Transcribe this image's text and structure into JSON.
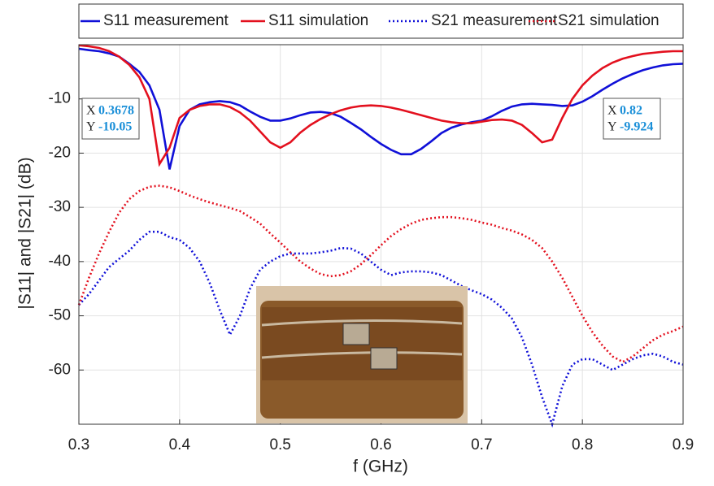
{
  "chart_data": {
    "type": "line",
    "x_label": "f (GHz)",
    "y_label": "|S11| and |S21| (dB)",
    "x": [
      0.3,
      0.31,
      0.32,
      0.33,
      0.34,
      0.35,
      0.36,
      0.37,
      0.38,
      0.39,
      0.4,
      0.41,
      0.42,
      0.43,
      0.44,
      0.45,
      0.46,
      0.47,
      0.48,
      0.49,
      0.5,
      0.51,
      0.52,
      0.53,
      0.54,
      0.55,
      0.56,
      0.57,
      0.58,
      0.59,
      0.6,
      0.61,
      0.62,
      0.63,
      0.64,
      0.65,
      0.66,
      0.67,
      0.68,
      0.69,
      0.7,
      0.71,
      0.72,
      0.73,
      0.74,
      0.75,
      0.76,
      0.77,
      0.78,
      0.79,
      0.8,
      0.81,
      0.82,
      0.83,
      0.84,
      0.85,
      0.86,
      0.87,
      0.88,
      0.89,
      0.9
    ],
    "series": [
      {
        "name": "S11 measurement",
        "color": "#1010d8",
        "line_style": "solid",
        "values": [
          -0.75,
          -1,
          -1.2,
          -1.6,
          -2.2,
          -3.5,
          -5,
          -7.5,
          -12,
          -23,
          -15,
          -12,
          -11,
          -10.6,
          -10.4,
          -10.6,
          -11.2,
          -12.3,
          -13.3,
          -14,
          -14,
          -13.6,
          -13,
          -12.5,
          -12.4,
          -12.6,
          -13.3,
          -14.4,
          -15.6,
          -17,
          -18.3,
          -19.4,
          -20.2,
          -20.2,
          -19.2,
          -17.8,
          -16.3,
          -15.3,
          -14.7,
          -14.3,
          -14,
          -13.2,
          -12.2,
          -11.4,
          -11,
          -10.9,
          -11,
          -11.1,
          -11.3,
          -11.2,
          -10.5,
          -9.5,
          -8.3,
          -7.2,
          -6.2,
          -5.4,
          -4.7,
          -4.2,
          -3.8,
          -3.6,
          -3.5
        ]
      },
      {
        "name": "S11 simulation",
        "color": "#e3101e",
        "line_style": "solid",
        "values": [
          -0.1,
          -0.3,
          -0.6,
          -1.2,
          -2.2,
          -3.7,
          -6,
          -10,
          -22,
          -19,
          -13.5,
          -12,
          -11.3,
          -11,
          -11,
          -11.5,
          -12.5,
          -14,
          -16,
          -18,
          -19,
          -18,
          -16.2,
          -14.8,
          -13.7,
          -12.8,
          -12.1,
          -11.6,
          -11.3,
          -11.2,
          -11.3,
          -11.6,
          -12,
          -12.5,
          -13,
          -13.5,
          -14,
          -14.3,
          -14.5,
          -14.5,
          -14.2,
          -13.9,
          -13.8,
          -14,
          -14.8,
          -16.3,
          -18,
          -17.5,
          -13.5,
          -10,
          -7.5,
          -5.7,
          -4.3,
          -3.3,
          -2.6,
          -2.1,
          -1.7,
          -1.5,
          -1.3,
          -1.2,
          -1.2
        ]
      },
      {
        "name": "S21 measurement",
        "color": "#1010d8",
        "line_style": "dotted",
        "values": [
          -48,
          -46,
          -43.5,
          -41,
          -39.5,
          -38,
          -36,
          -34.5,
          -34.5,
          -35.5,
          -36,
          -37.5,
          -40,
          -44,
          -49,
          -53.5,
          -50,
          -45,
          -41.5,
          -40,
          -39,
          -38.5,
          -38.5,
          -38.5,
          -38.3,
          -38,
          -37.5,
          -37.6,
          -38.5,
          -40,
          -41.5,
          -42.5,
          -42,
          -41.8,
          -41.8,
          -42,
          -42.5,
          -43.5,
          -44.5,
          -45.3,
          -46,
          -47,
          -48.5,
          -50.5,
          -54,
          -59,
          -65,
          -70,
          -63,
          -59,
          -58,
          -58,
          -59,
          -60,
          -59,
          -58,
          -57.3,
          -57,
          -57.5,
          -58.5,
          -59
        ]
      },
      {
        "name": "S21 simulation",
        "color": "#e3101e",
        "line_style": "dotted",
        "values": [
          -48,
          -43,
          -38.5,
          -34.5,
          -31,
          -28.5,
          -27,
          -26.2,
          -26,
          -26.3,
          -27,
          -27.8,
          -28.5,
          -29.1,
          -29.6,
          -30.1,
          -30.7,
          -31.8,
          -33,
          -34.8,
          -36.5,
          -38.3,
          -40,
          -41.3,
          -42.3,
          -42.7,
          -42.5,
          -41.8,
          -40.5,
          -38.8,
          -37,
          -35.3,
          -34,
          -33,
          -32.3,
          -32,
          -31.8,
          -31.8,
          -32,
          -32.3,
          -32.8,
          -33.2,
          -33.8,
          -34.3,
          -35,
          -36,
          -37.5,
          -40,
          -43,
          -46.5,
          -50,
          -53,
          -55.5,
          -57.5,
          -58.5,
          -57.5,
          -56,
          -54.5,
          -53.5,
          -52.8,
          -52
        ]
      }
    ],
    "xlim": [
      0.3,
      0.9
    ],
    "ylim": [
      -70,
      0
    ],
    "xticks": [
      0.3,
      0.4,
      0.5,
      0.6,
      0.7,
      0.8,
      0.9
    ],
    "yticks": [
      -60,
      -50,
      -40,
      -30,
      -20,
      -10
    ],
    "grid": true,
    "legend": "top",
    "annotations": [
      {
        "x_name": "X",
        "x": 0.3678,
        "y_name": "Y",
        "y": -10.05
      },
      {
        "x_name": "X",
        "x": 0.82,
        "y_name": "Y",
        "y": -9.924
      }
    ]
  }
}
